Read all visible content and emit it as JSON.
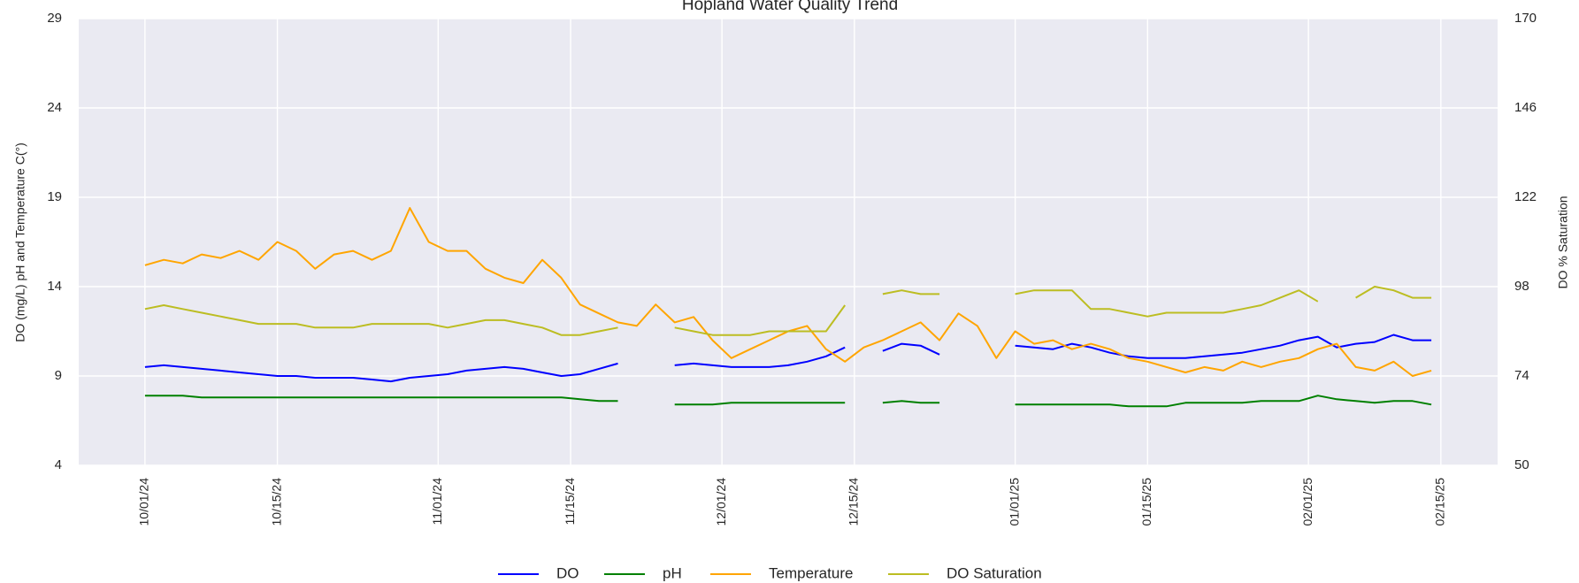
{
  "chart_data": {
    "type": "line",
    "title": "Hopland Water Quality Trend",
    "y_label": "DO (mg/L) pH and Temperature C(°)",
    "y2_label": "DO % Saturation",
    "x": [
      "2024-10-01",
      "2024-10-03",
      "2024-10-05",
      "2024-10-07",
      "2024-10-09",
      "2024-10-11",
      "2024-10-13",
      "2024-10-15",
      "2024-10-17",
      "2024-10-19",
      "2024-10-21",
      "2024-10-23",
      "2024-10-25",
      "2024-10-27",
      "2024-10-29",
      "2024-10-31",
      "2024-11-02",
      "2024-11-04",
      "2024-11-06",
      "2024-11-08",
      "2024-11-10",
      "2024-11-12",
      "2024-11-14",
      "2024-11-16",
      "2024-11-18",
      "2024-11-20",
      "2024-11-22",
      "2024-11-24",
      "2024-11-26",
      "2024-11-28",
      "2024-11-30",
      "2024-12-02",
      "2024-12-04",
      "2024-12-06",
      "2024-12-08",
      "2024-12-10",
      "2024-12-12",
      "2024-12-14",
      "2024-12-16",
      "2024-12-18",
      "2024-12-20",
      "2024-12-22",
      "2024-12-24",
      "2024-12-26",
      "2024-12-28",
      "2024-12-30",
      "2025-01-01",
      "2025-01-03",
      "2025-01-05",
      "2025-01-07",
      "2025-01-09",
      "2025-01-11",
      "2025-01-13",
      "2025-01-15",
      "2025-01-17",
      "2025-01-19",
      "2025-01-21",
      "2025-01-23",
      "2025-01-25",
      "2025-01-27",
      "2025-01-29",
      "2025-01-31",
      "2025-02-02",
      "2025-02-04",
      "2025-02-06",
      "2025-02-08",
      "2025-02-10",
      "2025-02-12",
      "2025-02-14"
    ],
    "series": [
      {
        "name": "DO",
        "color": "#0000ff",
        "axis": "y",
        "values": [
          9.5,
          9.6,
          9.5,
          9.4,
          9.3,
          9.2,
          9.1,
          9.0,
          9.0,
          8.9,
          8.9,
          8.9,
          8.8,
          8.7,
          8.9,
          9.0,
          9.1,
          9.3,
          9.4,
          9.5,
          9.4,
          9.2,
          9.0,
          9.1,
          9.4,
          9.7,
          null,
          null,
          9.6,
          9.7,
          9.6,
          9.5,
          9.5,
          9.5,
          9.6,
          9.8,
          10.1,
          10.6,
          null,
          10.4,
          10.8,
          10.7,
          10.2,
          null,
          null,
          null,
          10.7,
          10.6,
          10.5,
          10.8,
          10.6,
          10.3,
          10.1,
          10.0,
          10.0,
          10.0,
          10.1,
          10.2,
          10.3,
          10.5,
          10.7,
          11.0,
          11.2,
          10.6,
          10.8,
          10.9,
          11.3,
          11.0,
          11.0
        ]
      },
      {
        "name": "pH",
        "color": "#008000",
        "axis": "y",
        "values": [
          7.9,
          7.9,
          7.9,
          7.8,
          7.8,
          7.8,
          7.8,
          7.8,
          7.8,
          7.8,
          7.8,
          7.8,
          7.8,
          7.8,
          7.8,
          7.8,
          7.8,
          7.8,
          7.8,
          7.8,
          7.8,
          7.8,
          7.8,
          7.7,
          7.6,
          7.6,
          null,
          null,
          7.4,
          7.4,
          7.4,
          7.5,
          7.5,
          7.5,
          7.5,
          7.5,
          7.5,
          7.5,
          null,
          7.5,
          7.6,
          7.5,
          7.5,
          null,
          null,
          null,
          7.4,
          7.4,
          7.4,
          7.4,
          7.4,
          7.4,
          7.3,
          7.3,
          7.3,
          7.5,
          7.5,
          7.5,
          7.5,
          7.6,
          7.6,
          7.6,
          7.9,
          7.7,
          7.6,
          7.5,
          7.6,
          7.6,
          7.4
        ]
      },
      {
        "name": "Temperature",
        "color": "#ffa500",
        "axis": "y",
        "values": [
          15.2,
          15.5,
          15.3,
          15.8,
          15.6,
          16.0,
          15.5,
          16.5,
          16.0,
          15.0,
          15.8,
          16.0,
          15.5,
          16.0,
          18.4,
          16.5,
          16.0,
          16.0,
          15.0,
          14.5,
          14.2,
          15.5,
          14.5,
          13.0,
          12.5,
          12.0,
          11.8,
          13.0,
          12.0,
          12.3,
          11.0,
          10.0,
          10.5,
          11.0,
          11.5,
          11.8,
          10.5,
          9.8,
          10.6,
          11.0,
          11.5,
          12.0,
          11.0,
          12.5,
          11.8,
          10.0,
          11.5,
          10.8,
          11.0,
          10.5,
          10.8,
          10.5,
          10.0,
          9.8,
          9.5,
          9.2,
          9.5,
          9.3,
          9.8,
          9.5,
          9.8,
          10.0,
          10.5,
          10.8,
          9.5,
          9.3,
          9.8,
          9.0,
          9.3
        ]
      },
      {
        "name": "DO Saturation",
        "color": "#bcbd22",
        "axis": "y2",
        "values": [
          92,
          93,
          92,
          91,
          90,
          89,
          88,
          88,
          88,
          87,
          87,
          87,
          88,
          88,
          88,
          88,
          87,
          88,
          89,
          89,
          88,
          87,
          85,
          85,
          86,
          87,
          null,
          null,
          87,
          86,
          85,
          85,
          85,
          86,
          86,
          86,
          86,
          93,
          null,
          96,
          97,
          96,
          96,
          null,
          null,
          null,
          96,
          97,
          97,
          97,
          92,
          92,
          91,
          90,
          91,
          91,
          91,
          91,
          92,
          93,
          95,
          97,
          94,
          null,
          95,
          98,
          97,
          95,
          95
        ]
      }
    ],
    "xlim": [
      "2024-09-24",
      "2025-02-21"
    ],
    "xticks": [
      {
        "value": "2024-10-01",
        "label": "10/01/24"
      },
      {
        "value": "2024-10-15",
        "label": "10/15/24"
      },
      {
        "value": "2024-11-01",
        "label": "11/01/24"
      },
      {
        "value": "2024-11-15",
        "label": "11/15/24"
      },
      {
        "value": "2024-12-01",
        "label": "12/01/24"
      },
      {
        "value": "2024-12-15",
        "label": "12/15/24"
      },
      {
        "value": "2025-01-01",
        "label": "01/01/25"
      },
      {
        "value": "2025-01-15",
        "label": "01/15/25"
      },
      {
        "value": "2025-02-01",
        "label": "02/01/25"
      },
      {
        "value": "2025-02-15",
        "label": "02/15/25"
      }
    ],
    "ylim": [
      4,
      29
    ],
    "yticks": [
      4,
      9,
      14,
      19,
      24,
      29
    ],
    "y2lim": [
      50,
      170
    ],
    "y2ticks": [
      50,
      74,
      98,
      122,
      146,
      170
    ],
    "grid": true,
    "legend": "bottom"
  }
}
